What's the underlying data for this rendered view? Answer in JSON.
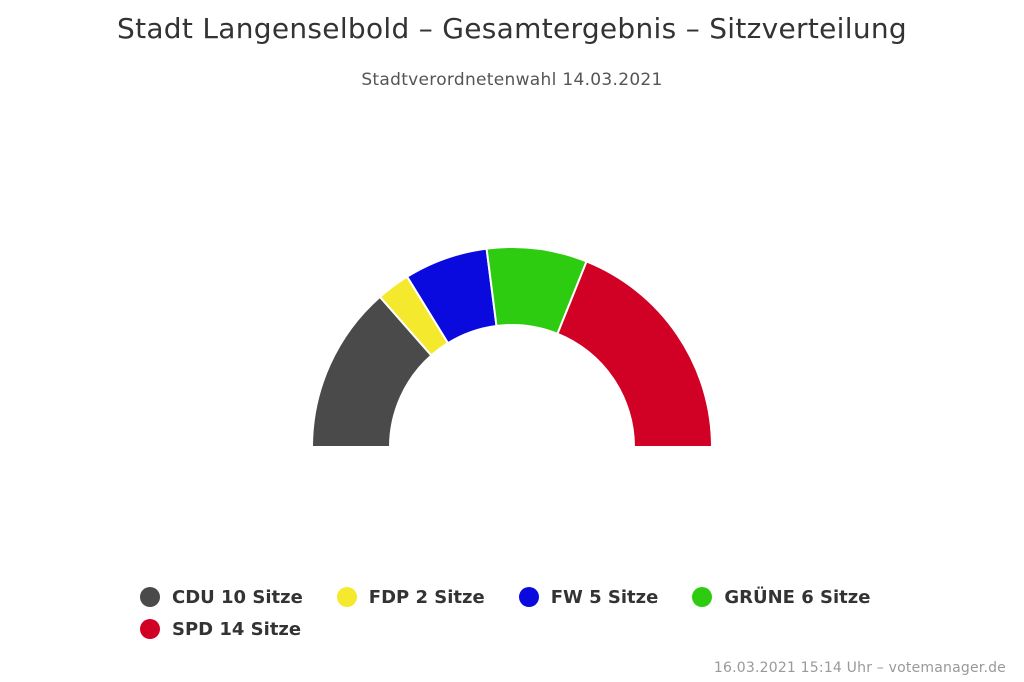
{
  "chart_data": {
    "type": "pie",
    "variant": "semicircle-donut",
    "title": "Stadt Langenselbold – Gesamtergebnis – Sitzverteilung",
    "subtitle": "Stadtverordnetenwahl 14.03.2021",
    "unit": "Sitze",
    "categories": [
      "CDU",
      "FDP",
      "FW",
      "GRÜNE",
      "SPD"
    ],
    "values": [
      10,
      2,
      5,
      6,
      14
    ],
    "colors": [
      "#4a4a4a",
      "#f5e92e",
      "#0a0ade",
      "#2ecc11",
      "#d10025"
    ],
    "legend_labels": [
      "CDU 10 Sitze",
      "FDP 2 Sitze",
      "FW 5 Sitze",
      "GRÜNE 6 Sitze",
      "SPD 14 Sitze"
    ],
    "legend_position": "bottom"
  },
  "credits": "16.03.2021 15:14 Uhr – votemanager.de"
}
